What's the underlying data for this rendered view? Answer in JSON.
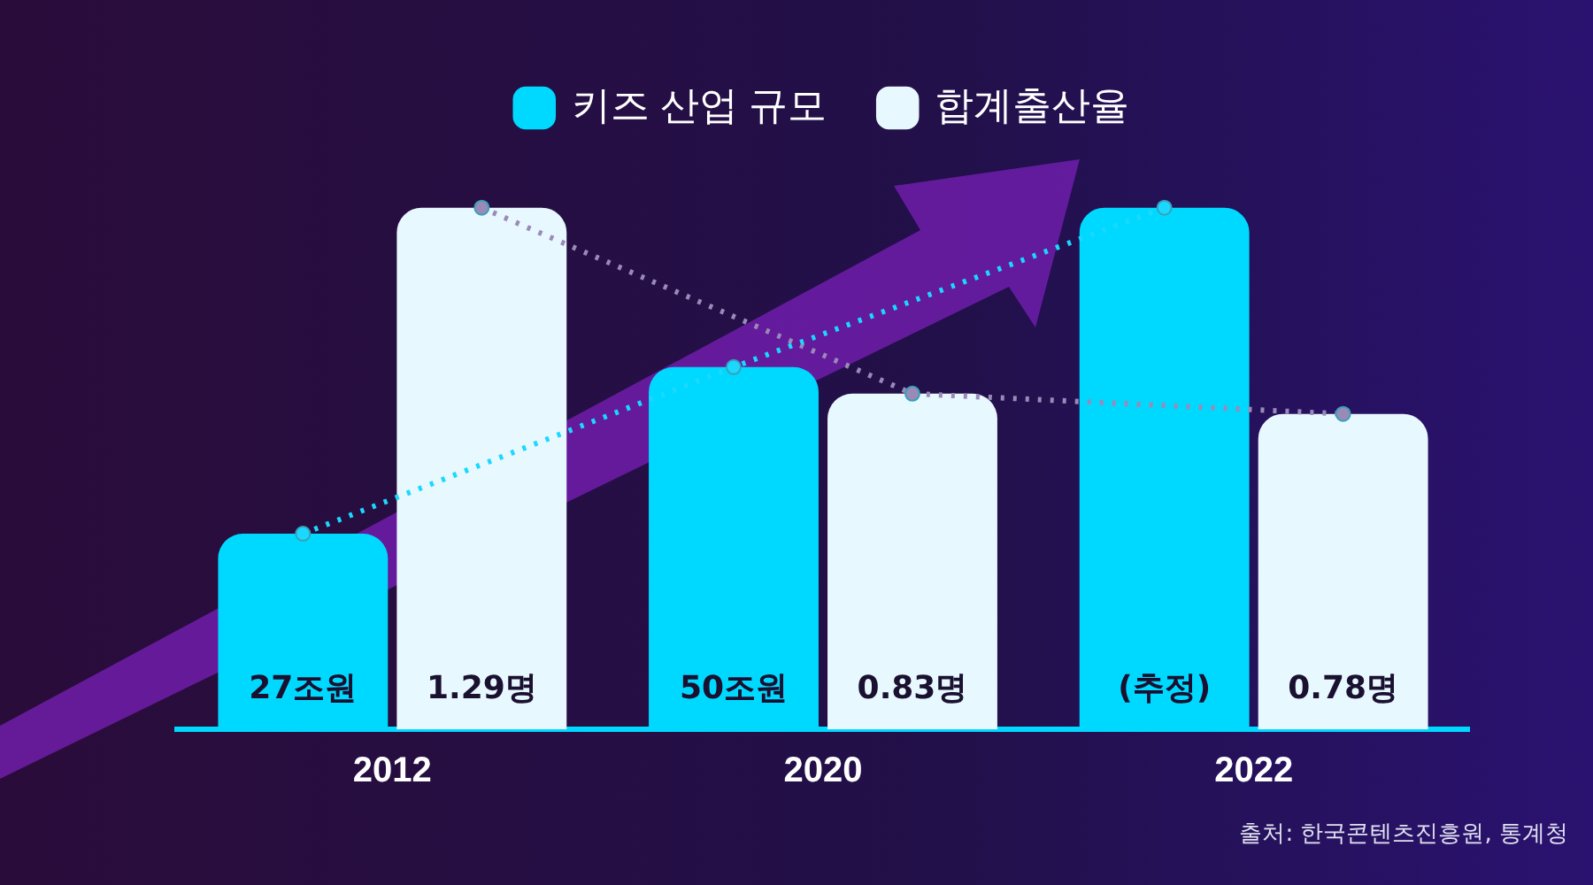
{
  "chart_data": {
    "type": "bar",
    "categories": [
      "2012",
      "2020",
      "2022"
    ],
    "series": [
      {
        "name": "키즈 산업 규모",
        "color": "#00d9ff",
        "values": [
          27,
          50,
          72
        ],
        "value_labels": [
          "27조원",
          "50조원",
          "(추정)"
        ]
      },
      {
        "name": "합계출산율",
        "color": "#e8f8ff",
        "values": [
          1.29,
          0.83,
          0.78
        ],
        "axis": "y2",
        "value_labels": [
          "1.29명",
          "0.83명",
          "0.78명"
        ]
      },
      {
        "type": "line",
        "color": "#1ad8ff",
        "values": [
          27,
          50,
          72
        ]
      },
      {
        "type": "line",
        "color": "#9a8ab8",
        "values": [
          1.29,
          0.83,
          0.78
        ],
        "axis": "y2"
      }
    ],
    "legend": "top",
    "marker": "circle",
    "line_style": "dotted",
    "annotations": [
      "출처: 한국콘텐츠진흥원, 통계청"
    ]
  }
}
